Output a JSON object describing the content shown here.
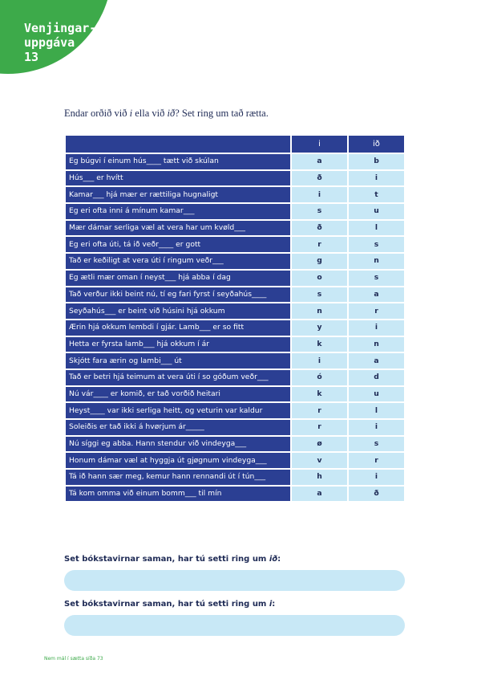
{
  "badge": [
    "Venjingar-",
    "uppgáva",
    "13"
  ],
  "instruction": [
    "Endar orðið við ",
    "i",
    " ella við ",
    "ið",
    "? Set ring um tað rætta."
  ],
  "table": {
    "header": [
      "i",
      "ið"
    ],
    "rows": [
      [
        "Eg búgvi í einum hús____ tætt við skúlan",
        "a",
        "b"
      ],
      [
        "Hús___ er hvítt",
        "ð",
        "i"
      ],
      [
        "Kamar___ hjá mær er rættiliga hugnaligt",
        "i",
        "t"
      ],
      [
        "Eg eri ofta inni á mínum kamar___",
        "s",
        "u"
      ],
      [
        "Mær dámar serliga væl at vera har um kvøld___",
        "ð",
        "l"
      ],
      [
        "Eg eri ofta úti, tá ið veðr____ er gott",
        "r",
        "s"
      ],
      [
        "Tað er keðiligt at vera úti í ringum veðr___",
        "g",
        "n"
      ],
      [
        "Eg ætli mær oman í neyst___ hjá abba í dag",
        "o",
        "s"
      ],
      [
        "Tað verður ikki beint nú, tí eg fari fyrst í seyðahús____",
        "s",
        "a"
      ],
      [
        "Seyðahús___ er beint við húsini hjá okkum",
        "n",
        "r"
      ],
      [
        "Ærin hjá okkum lembdi í gjár. Lamb___ er so fitt",
        "y",
        "i"
      ],
      [
        "Hetta er fyrsta lamb___ hjá okkum í ár",
        "k",
        "n"
      ],
      [
        "Skjótt fara ærin og lambi___ út",
        "i",
        "a"
      ],
      [
        "Tað er betri hjá teimum at vera úti í so góðum veðr___",
        "ó",
        "d"
      ],
      [
        "Nú vár____ er komið, er tað vorðið heitari",
        "k",
        "u"
      ],
      [
        "Heyst____ var ikki serliga heitt, og veturin var kaldur",
        "r",
        "l"
      ],
      [
        "Soleiðis er tað ikki á hvørjum ár_____",
        "r",
        "i"
      ],
      [
        "Nú síggi eg abba. Hann stendur við vindeyga___",
        "ø",
        "s"
      ],
      [
        "Honum dámar væl at hyggja út gjøgnum vindeyga___",
        "v",
        "r"
      ],
      [
        "Tá ið hann sær meg, kemur hann rennandi út í tún___",
        "h",
        "i"
      ],
      [
        "Tá kom omma við einum bomm___ til mín",
        "a",
        "ð"
      ]
    ]
  },
  "answers": [
    [
      "Set bókstavirnar saman, har tú setti ring um ",
      "ið",
      ":"
    ],
    [
      "Set bókstavirnar saman, har tú setti ring um ",
      "i",
      ":"
    ]
  ],
  "footer": "Nem mál í sætta síða 73"
}
